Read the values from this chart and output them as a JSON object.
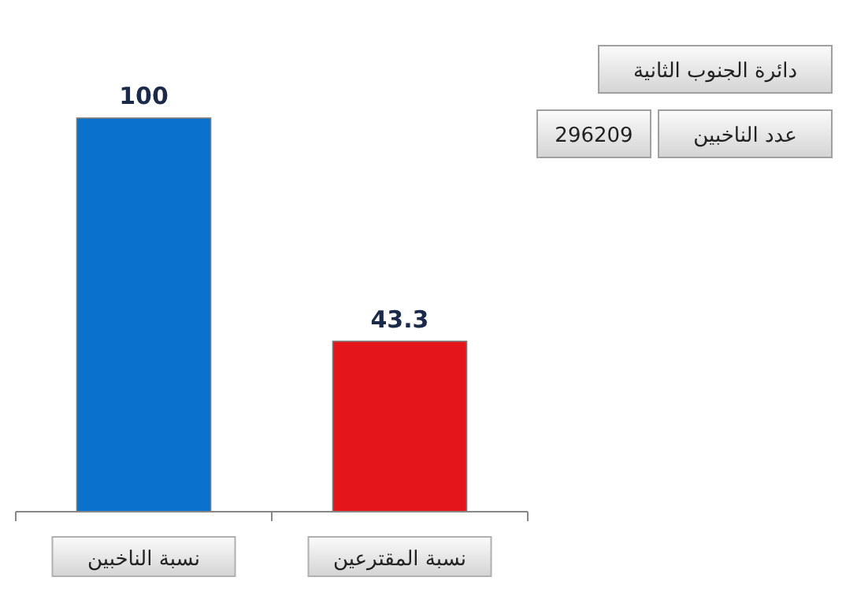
{
  "chart_data": {
    "type": "bar",
    "categories": [
      "نسبة الناخبين",
      "نسبة المقترعين"
    ],
    "values": [
      100,
      43.3
    ],
    "colors": [
      "#0a72cc",
      "#e4161a"
    ],
    "data_labels": true,
    "annotations": [
      "دائرة الجنوب الثانية",
      "عدد الناخبين",
      "296209"
    ]
  }
}
